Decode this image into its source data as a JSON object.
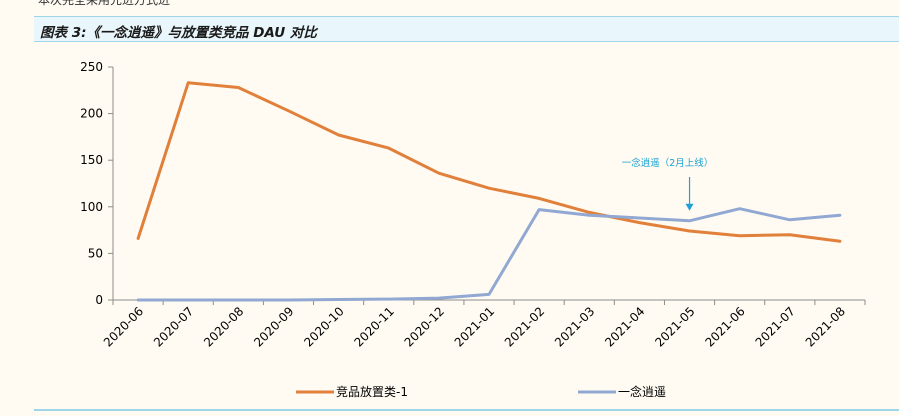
{
  "page": {
    "top_text": "本次完全采用先进方式进",
    "figure_title": "图表 3:《一念逍遥》与放置类竞品 DAU 对比"
  },
  "colors": {
    "series_orange": "#e0803a",
    "series_blue": "#91a8d3",
    "annotation": "#1aa3d4",
    "axis": "#8c8c8c"
  },
  "chart_data": {
    "type": "line",
    "title": "",
    "xlabel": "",
    "ylabel": "",
    "categories": [
      "2020-06",
      "2020-07",
      "2020-08",
      "2020-09",
      "2020-10",
      "2020-11",
      "2020-12",
      "2021-01",
      "2021-02",
      "2021-03",
      "2021-04",
      "2021-05",
      "2021-06",
      "2021-07",
      "2021-08"
    ],
    "ylim": [
      0,
      250
    ],
    "yticks": [
      0,
      50,
      100,
      150,
      200,
      250
    ],
    "grid": false,
    "legend_position": "bottom",
    "series": [
      {
        "name": "竞品放置类-1",
        "color": "#e0803a",
        "values": [
          66,
          233,
          228,
          203,
          177,
          163,
          136,
          120,
          109,
          94,
          83,
          74,
          69,
          70,
          63
        ]
      },
      {
        "name": "一念逍遥",
        "color": "#91a8d3",
        "values": [
          0,
          0,
          0,
          0,
          0.5,
          1,
          2,
          6,
          97,
          91,
          88,
          85,
          98,
          86,
          91
        ]
      }
    ],
    "annotation": {
      "text": "一念逍遥（2月上线）",
      "category": "2021-05",
      "value": 85
    }
  }
}
